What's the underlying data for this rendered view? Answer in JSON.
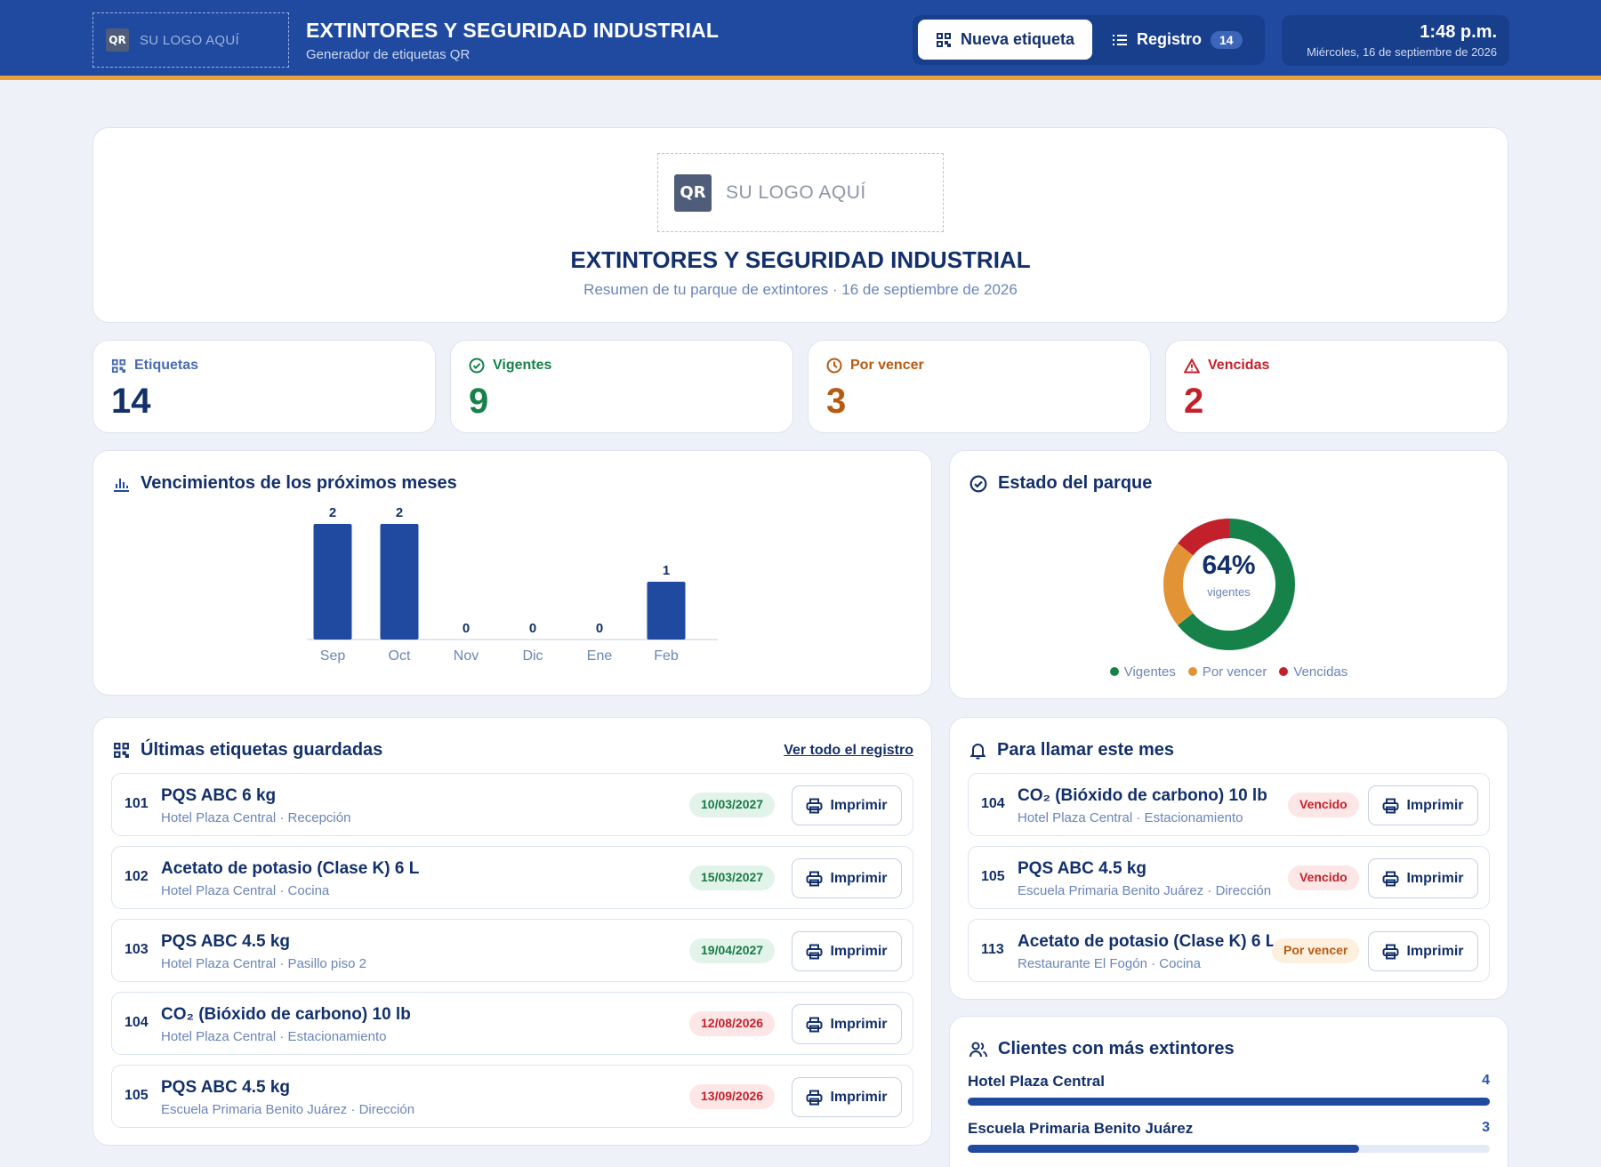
{
  "header": {
    "logo_badge": "QR",
    "logo_text": "SU LOGO AQUÍ",
    "title": "EXTINTORES Y SEGURIDAD INDUSTRIAL",
    "subtitle": "Generador de etiquetas QR",
    "new_label_button": "Nueva etiqueta",
    "registry_button": "Registro",
    "registry_count": "14",
    "time": "1:48 p.m.",
    "date": "Miércoles, 16 de septiembre de 2026"
  },
  "hero": {
    "logo_badge": "QR",
    "logo_text": "SU LOGO AQUÍ",
    "title": "EXTINTORES Y SEGURIDAD INDUSTRIAL",
    "subtitle": "Resumen de tu parque de extintores · 16 de septiembre de 2026"
  },
  "stats": [
    {
      "label": "Etiquetas",
      "value": "14",
      "color": "#13306b",
      "label_color": "#4a6bb0",
      "icon": "qr-icon"
    },
    {
      "label": "Vigentes",
      "value": "9",
      "color": "#16824a",
      "label_color": "#16824a",
      "icon": "check-circle-icon"
    },
    {
      "label": "Por vencer",
      "value": "3",
      "color": "#b75a12",
      "label_color": "#b75a12",
      "icon": "clock-icon"
    },
    {
      "label": "Vencidas",
      "value": "2",
      "color": "#c2212c",
      "label_color": "#c2212c",
      "icon": "warning-icon"
    }
  ],
  "expirations": {
    "title": "Vencimientos de los próximos meses"
  },
  "chart_data": {
    "type": "bar",
    "categories": [
      "Sep",
      "Oct",
      "Nov",
      "Dic",
      "Ene",
      "Feb"
    ],
    "values": [
      2,
      2,
      0,
      0,
      0,
      1
    ],
    "title": "Vencimientos de los próximos meses",
    "ylim": [
      0,
      2
    ],
    "grid": false,
    "color": "#1f4aa0"
  },
  "park": {
    "title": "Estado del parque",
    "percent": "64%",
    "percent_label": "vigentes",
    "slices": [
      {
        "name": "Vigentes",
        "value": 9,
        "color": "#16824a"
      },
      {
        "name": "Por vencer",
        "value": 3,
        "color": "#e29336"
      },
      {
        "name": "Vencidas",
        "value": 2,
        "color": "#c2212c"
      }
    ]
  },
  "last_labels": {
    "title": "Últimas etiquetas guardadas",
    "view_all": "Ver todo el registro",
    "print_label": "Imprimir",
    "items": [
      {
        "num": "101",
        "title": "PQS ABC 6 kg",
        "location": "Hotel Plaza Central · Recepción",
        "date": "10/03/2027",
        "status": "green"
      },
      {
        "num": "102",
        "title": "Acetato de potasio (Clase K) 6 L",
        "location": "Hotel Plaza Central · Cocina",
        "date": "15/03/2027",
        "status": "green"
      },
      {
        "num": "103",
        "title": "PQS ABC 4.5 kg",
        "location": "Hotel Plaza Central · Pasillo piso 2",
        "date": "19/04/2027",
        "status": "green"
      },
      {
        "num": "104",
        "title": "CO₂ (Bióxido de carbono) 10 lb",
        "location": "Hotel Plaza Central · Estacionamiento",
        "date": "12/08/2026",
        "status": "red"
      },
      {
        "num": "105",
        "title": "PQS ABC 4.5 kg",
        "location": "Escuela Primaria Benito Juárez · Dirección",
        "date": "13/09/2026",
        "status": "red"
      }
    ]
  },
  "call_month": {
    "title": "Para llamar este mes",
    "print_label": "Imprimir",
    "items": [
      {
        "num": "104",
        "title": "CO₂ (Bióxido de carbono) 10 lb",
        "location": "Hotel Plaza Central · Estacionamiento",
        "status_text": "Vencido",
        "status": "red"
      },
      {
        "num": "105",
        "title": "PQS ABC 4.5 kg",
        "location": "Escuela Primaria Benito Juárez · Dirección",
        "status_text": "Vencido",
        "status": "red"
      },
      {
        "num": "113",
        "title": "Acetato de potasio (Clase K) 6 L",
        "location": "Restaurante El Fogón · Cocina",
        "status_text": "Por vencer",
        "status": "orange"
      }
    ]
  },
  "clients": {
    "title": "Clientes con más extintores",
    "max": 4,
    "items": [
      {
        "name": "Hotel Plaza Central",
        "count": "4",
        "value": 4
      },
      {
        "name": "Escuela Primaria Benito Juárez",
        "count": "3",
        "value": 3
      }
    ]
  }
}
